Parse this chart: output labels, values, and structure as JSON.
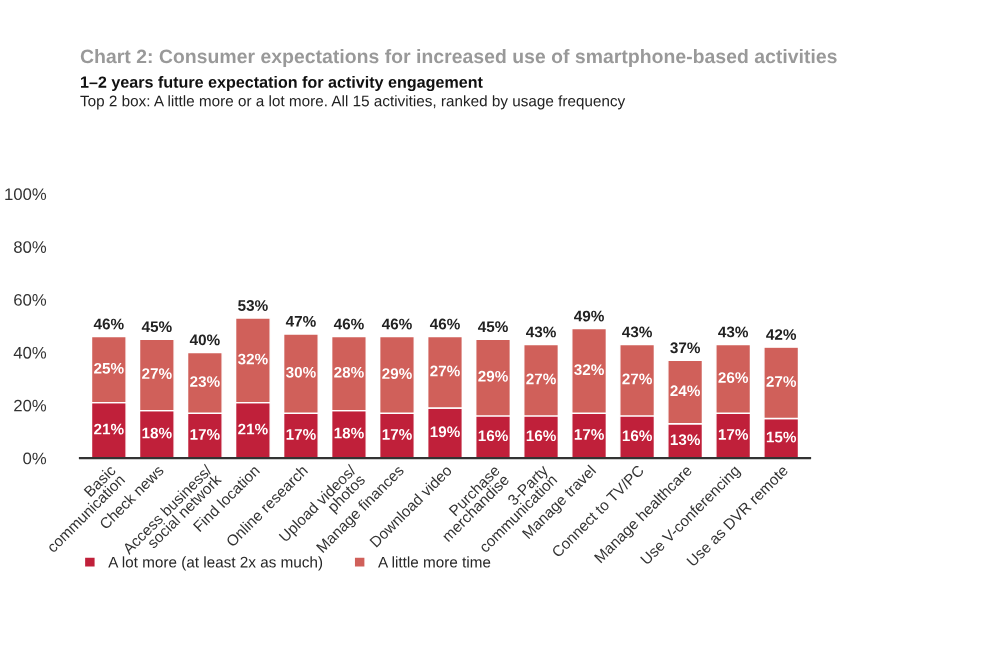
{
  "chart_data": {
    "type": "bar",
    "stacked": true,
    "title": "Chart 2: Consumer expectations for increased use of smartphone-based activities",
    "subtitle": "1–2 years future expectation for activity engagement",
    "annotations": [
      "Top 2 box: A little more or a lot more. All 15 activities, ranked by usage frequency"
    ],
    "categories": [
      "Basic\ncommunication",
      "Check news",
      "Access business/\nsocial network",
      "Find location",
      "Online research",
      "Upload videos/\nphotos",
      "Manage finances",
      "Download video",
      "Purchase\nmerchandise",
      "3-Party\ncommunication",
      "Manage travel",
      "Connect to TV/PC",
      "Manage healthcare",
      "Use V-conferencing",
      "Use as DVR remote"
    ],
    "series": [
      {
        "name": "A lot more (at least 2x as much)",
        "color": "#c0203a",
        "values": [
          21,
          18,
          17,
          21,
          17,
          18,
          17,
          19,
          16,
          16,
          17,
          16,
          13,
          17,
          15
        ],
        "value_labels": [
          "21%",
          "18%",
          "17%",
          "21%",
          "17%",
          "18%",
          "17%",
          "19%",
          "16%",
          "16%",
          "17%",
          "16%",
          "13%",
          "17%",
          "15%"
        ]
      },
      {
        "name": "A little more time",
        "color": "#d0605a",
        "values": [
          25,
          27,
          23,
          32,
          30,
          28,
          29,
          27,
          29,
          27,
          32,
          27,
          24,
          26,
          27
        ],
        "value_labels": [
          "25%",
          "27%",
          "23%",
          "32%",
          "30%",
          "28%",
          "29%",
          "27%",
          "29%",
          "27%",
          "32%",
          "27%",
          "24%",
          "26%",
          "27%"
        ]
      }
    ],
    "totals": [
      "46%",
      "45%",
      "40%",
      "53%",
      "47%",
      "46%",
      "46%",
      "46%",
      "45%",
      "43%",
      "49%",
      "43%",
      "37%",
      "43%",
      "42%"
    ],
    "ylim": [
      0,
      100
    ],
    "yticks": [
      {
        "value": 0,
        "label": "0%"
      },
      {
        "value": 20,
        "label": "20%"
      },
      {
        "value": 40,
        "label": "40%"
      },
      {
        "value": 60,
        "label": "60%"
      },
      {
        "value": 80,
        "label": "80%"
      },
      {
        "value": 100,
        "label": "100%"
      }
    ],
    "legend": "bottom left"
  }
}
